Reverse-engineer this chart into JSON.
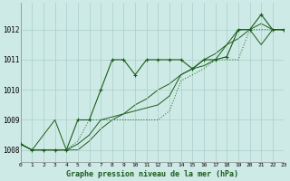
{
  "title": "Graphe pression niveau de la mer (hPa)",
  "background_color": "#ceeae6",
  "grid_color": "#aaccc8",
  "line_color": "#1a5c1a",
  "x_labels": [
    "0",
    "1",
    "2",
    "3",
    "4",
    "5",
    "6",
    "7",
    "8",
    "9",
    "10",
    "11",
    "12",
    "13",
    "14",
    "15",
    "16",
    "17",
    "18",
    "19",
    "20",
    "21",
    "22",
    "23"
  ],
  "xlim": [
    0,
    23
  ],
  "ylim": [
    1007.6,
    1012.9
  ],
  "yticks": [
    1008,
    1009,
    1010,
    1011,
    1012
  ],
  "figsize": [
    3.2,
    2.0
  ],
  "dpi": 100,
  "series_markers": [
    1008.2,
    1008.0,
    1008.0,
    1008.0,
    1008.0,
    1009.0,
    1009.0,
    1010.0,
    1011.0,
    1011.0,
    1010.5,
    1011.0,
    1011.0,
    1011.0,
    1011.0,
    1010.7,
    1011.0,
    1011.0,
    1011.1,
    1012.0,
    1012.0,
    1012.5,
    1012.0,
    1012.0
  ],
  "series_dotted": [
    1008.2,
    1008.0,
    1008.0,
    1008.0,
    1008.0,
    1008.3,
    1009.0,
    1009.0,
    1009.0,
    1009.0,
    1009.0,
    1009.0,
    1009.0,
    1009.3,
    1010.3,
    1010.5,
    1010.7,
    1011.0,
    1011.0,
    1011.0,
    1012.0,
    1012.0,
    1012.0,
    1012.0
  ],
  "series_solid1": [
    1008.2,
    1008.0,
    1008.5,
    1009.0,
    1008.0,
    1008.2,
    1008.5,
    1009.0,
    1009.1,
    1009.2,
    1009.3,
    1009.4,
    1009.5,
    1009.8,
    1010.5,
    1010.7,
    1010.8,
    1011.0,
    1011.5,
    1012.0,
    1012.0,
    1011.5,
    1012.0,
    1012.0
  ],
  "series_solid2": [
    1008.2,
    1008.0,
    1008.0,
    1008.0,
    1008.0,
    1008.0,
    1008.3,
    1008.7,
    1009.0,
    1009.2,
    1009.5,
    1009.7,
    1010.0,
    1010.2,
    1010.5,
    1010.7,
    1011.0,
    1011.2,
    1011.5,
    1011.7,
    1012.0,
    1012.2,
    1012.0,
    1012.0
  ]
}
